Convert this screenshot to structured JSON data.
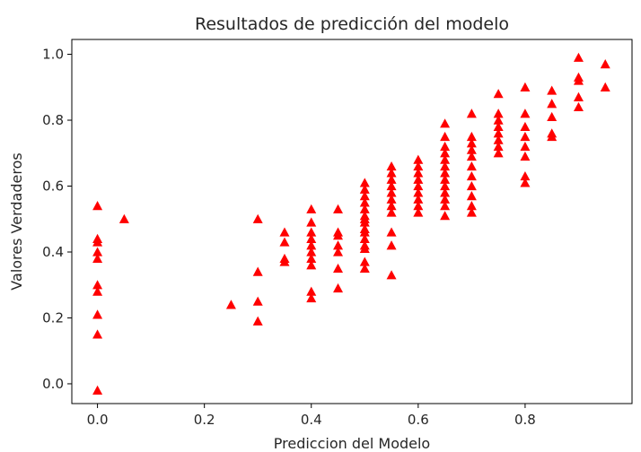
{
  "chart_data": {
    "type": "scatter",
    "title": "Resultados de predicción del modelo",
    "xlabel": "Prediccion del Modelo",
    "ylabel": "Valores Verdaderos",
    "xlim": [
      -0.048,
      1.0
    ],
    "ylim": [
      -0.06,
      1.045
    ],
    "xticks": [
      0.0,
      0.2,
      0.4,
      0.6,
      0.8
    ],
    "yticks": [
      0.0,
      0.2,
      0.4,
      0.6,
      0.8,
      1.0
    ],
    "xtick_labels": [
      "0.0",
      "0.2",
      "0.4",
      "0.6",
      "0.8"
    ],
    "ytick_labels": [
      "0.0",
      "0.2",
      "0.4",
      "0.6",
      "0.8",
      "1.0"
    ],
    "grid": false,
    "legend": null,
    "marker": "triangle-up",
    "color": "#ff0000",
    "points": [
      [
        0.0,
        0.54
      ],
      [
        0.0,
        0.44
      ],
      [
        0.0,
        0.43
      ],
      [
        0.0,
        0.4
      ],
      [
        0.0,
        0.38
      ],
      [
        0.0,
        0.3
      ],
      [
        0.0,
        0.28
      ],
      [
        0.0,
        0.21
      ],
      [
        0.0,
        0.15
      ],
      [
        0.0,
        -0.02
      ],
      [
        0.05,
        0.5
      ],
      [
        0.25,
        0.24
      ],
      [
        0.3,
        0.5
      ],
      [
        0.3,
        0.34
      ],
      [
        0.3,
        0.25
      ],
      [
        0.3,
        0.19
      ],
      [
        0.35,
        0.46
      ],
      [
        0.35,
        0.43
      ],
      [
        0.35,
        0.38
      ],
      [
        0.35,
        0.37
      ],
      [
        0.4,
        0.53
      ],
      [
        0.4,
        0.49
      ],
      [
        0.4,
        0.46
      ],
      [
        0.4,
        0.44
      ],
      [
        0.4,
        0.42
      ],
      [
        0.4,
        0.4
      ],
      [
        0.4,
        0.38
      ],
      [
        0.4,
        0.36
      ],
      [
        0.4,
        0.28
      ],
      [
        0.4,
        0.26
      ],
      [
        0.45,
        0.53
      ],
      [
        0.45,
        0.46
      ],
      [
        0.45,
        0.45
      ],
      [
        0.45,
        0.42
      ],
      [
        0.45,
        0.4
      ],
      [
        0.45,
        0.35
      ],
      [
        0.45,
        0.29
      ],
      [
        0.5,
        0.61
      ],
      [
        0.5,
        0.59
      ],
      [
        0.5,
        0.57
      ],
      [
        0.5,
        0.55
      ],
      [
        0.5,
        0.53
      ],
      [
        0.5,
        0.51
      ],
      [
        0.5,
        0.5
      ],
      [
        0.5,
        0.49
      ],
      [
        0.5,
        0.47
      ],
      [
        0.5,
        0.46
      ],
      [
        0.5,
        0.44
      ],
      [
        0.5,
        0.42
      ],
      [
        0.5,
        0.41
      ],
      [
        0.5,
        0.37
      ],
      [
        0.5,
        0.35
      ],
      [
        0.55,
        0.66
      ],
      [
        0.55,
        0.64
      ],
      [
        0.55,
        0.62
      ],
      [
        0.55,
        0.6
      ],
      [
        0.55,
        0.58
      ],
      [
        0.55,
        0.56
      ],
      [
        0.55,
        0.54
      ],
      [
        0.55,
        0.52
      ],
      [
        0.55,
        0.46
      ],
      [
        0.55,
        0.42
      ],
      [
        0.55,
        0.33
      ],
      [
        0.6,
        0.68
      ],
      [
        0.6,
        0.66
      ],
      [
        0.6,
        0.64
      ],
      [
        0.6,
        0.62
      ],
      [
        0.6,
        0.6
      ],
      [
        0.6,
        0.58
      ],
      [
        0.6,
        0.56
      ],
      [
        0.6,
        0.54
      ],
      [
        0.6,
        0.52
      ],
      [
        0.65,
        0.79
      ],
      [
        0.65,
        0.75
      ],
      [
        0.65,
        0.72
      ],
      [
        0.65,
        0.7
      ],
      [
        0.65,
        0.68
      ],
      [
        0.65,
        0.66
      ],
      [
        0.65,
        0.64
      ],
      [
        0.65,
        0.62
      ],
      [
        0.65,
        0.6
      ],
      [
        0.65,
        0.58
      ],
      [
        0.65,
        0.56
      ],
      [
        0.65,
        0.54
      ],
      [
        0.65,
        0.51
      ],
      [
        0.7,
        0.82
      ],
      [
        0.7,
        0.75
      ],
      [
        0.7,
        0.73
      ],
      [
        0.7,
        0.71
      ],
      [
        0.7,
        0.69
      ],
      [
        0.7,
        0.66
      ],
      [
        0.7,
        0.63
      ],
      [
        0.7,
        0.6
      ],
      [
        0.7,
        0.57
      ],
      [
        0.7,
        0.54
      ],
      [
        0.7,
        0.52
      ],
      [
        0.75,
        0.88
      ],
      [
        0.75,
        0.82
      ],
      [
        0.75,
        0.8
      ],
      [
        0.75,
        0.78
      ],
      [
        0.75,
        0.76
      ],
      [
        0.75,
        0.74
      ],
      [
        0.75,
        0.72
      ],
      [
        0.75,
        0.7
      ],
      [
        0.8,
        0.9
      ],
      [
        0.8,
        0.82
      ],
      [
        0.8,
        0.78
      ],
      [
        0.8,
        0.75
      ],
      [
        0.8,
        0.72
      ],
      [
        0.8,
        0.69
      ],
      [
        0.8,
        0.63
      ],
      [
        0.8,
        0.61
      ],
      [
        0.85,
        0.89
      ],
      [
        0.85,
        0.85
      ],
      [
        0.85,
        0.81
      ],
      [
        0.85,
        0.76
      ],
      [
        0.85,
        0.75
      ],
      [
        0.9,
        0.99
      ],
      [
        0.9,
        0.93
      ],
      [
        0.9,
        0.92
      ],
      [
        0.9,
        0.87
      ],
      [
        0.9,
        0.84
      ],
      [
        0.95,
        0.97
      ],
      [
        0.95,
        0.9
      ]
    ]
  }
}
